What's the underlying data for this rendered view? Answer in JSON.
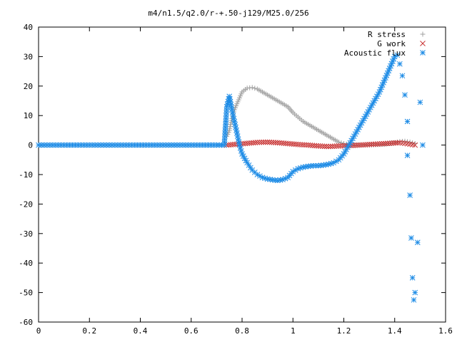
{
  "chart_data": {
    "type": "scatter",
    "title": "m4/n1.5/q2.0/r-+.50-j129/M25.0/256",
    "xlim": [
      0,
      1.6
    ],
    "ylim": [
      -60,
      40
    ],
    "x_ticks": [
      "0",
      "0.2",
      "0.4",
      "0.6",
      "0.8",
      "1",
      "1.2",
      "1.4",
      "1.6"
    ],
    "y_ticks": [
      "40",
      "30",
      "20",
      "10",
      "0",
      "-10",
      "-20",
      "-30",
      "-40",
      "-50",
      "-60"
    ],
    "grid": false,
    "legend_position": "top-right",
    "series": [
      {
        "name": "R stress",
        "marker": "plus",
        "color": "#a0a0a0",
        "points": [
          [
            0.74,
            3
          ],
          [
            0.75,
            5
          ],
          [
            0.76,
            9
          ],
          [
            0.77,
            12
          ],
          [
            0.78,
            14
          ],
          [
            0.79,
            16
          ],
          [
            0.8,
            18
          ],
          [
            0.82,
            19.3
          ],
          [
            0.84,
            19.5
          ],
          [
            0.86,
            19
          ],
          [
            0.88,
            18
          ],
          [
            0.9,
            17
          ],
          [
            0.92,
            16
          ],
          [
            0.94,
            15
          ],
          [
            0.96,
            14
          ],
          [
            0.98,
            13
          ],
          [
            1.0,
            11
          ],
          [
            1.02,
            9.5
          ],
          [
            1.04,
            8
          ],
          [
            1.06,
            7
          ],
          [
            1.08,
            6
          ],
          [
            1.1,
            5
          ],
          [
            1.12,
            4
          ],
          [
            1.14,
            3
          ],
          [
            1.16,
            2
          ],
          [
            1.18,
            1
          ],
          [
            1.2,
            0.5
          ],
          [
            1.22,
            0.2
          ],
          [
            1.24,
            0
          ],
          [
            1.3,
            0
          ],
          [
            1.36,
            0.3
          ],
          [
            1.4,
            0.8
          ],
          [
            1.42,
            1.2
          ],
          [
            1.44,
            1.3
          ],
          [
            1.46,
            1
          ],
          [
            1.48,
            0.5
          ]
        ]
      },
      {
        "name": "G work",
        "marker": "cross",
        "color": "#c83232",
        "points": [
          [
            0.74,
            0
          ],
          [
            0.78,
            0.3
          ],
          [
            0.82,
            0.6
          ],
          [
            0.86,
            0.9
          ],
          [
            0.9,
            1.0
          ],
          [
            0.94,
            0.8
          ],
          [
            0.98,
            0.5
          ],
          [
            1.02,
            0.2
          ],
          [
            1.06,
            0
          ],
          [
            1.1,
            -0.3
          ],
          [
            1.14,
            -0.5
          ],
          [
            1.18,
            -0.3
          ],
          [
            1.22,
            -0.2
          ],
          [
            1.26,
            0
          ],
          [
            1.3,
            0.2
          ],
          [
            1.34,
            0.4
          ],
          [
            1.38,
            0.6
          ],
          [
            1.42,
            0.8
          ],
          [
            1.44,
            0.6
          ],
          [
            1.46,
            0.3
          ],
          [
            1.48,
            0
          ]
        ]
      },
      {
        "name": "Acoustic flux",
        "marker": "star",
        "color": "#1e8ce6",
        "points": [
          [
            0,
            0
          ],
          [
            0.1,
            0
          ],
          [
            0.2,
            0
          ],
          [
            0.3,
            0
          ],
          [
            0.4,
            0
          ],
          [
            0.5,
            0
          ],
          [
            0.6,
            0
          ],
          [
            0.7,
            0
          ],
          [
            0.73,
            0
          ],
          [
            0.74,
            13
          ],
          [
            0.75,
            16.5
          ],
          [
            0.76,
            12
          ],
          [
            0.77,
            8
          ],
          [
            0.78,
            4
          ],
          [
            0.79,
            0
          ],
          [
            0.8,
            -3
          ],
          [
            0.82,
            -6
          ],
          [
            0.84,
            -8.5
          ],
          [
            0.86,
            -10
          ],
          [
            0.88,
            -11
          ],
          [
            0.9,
            -11.5
          ],
          [
            0.92,
            -11.8
          ],
          [
            0.94,
            -12
          ],
          [
            0.96,
            -11.7
          ],
          [
            0.98,
            -11
          ],
          [
            1.0,
            -9
          ],
          [
            1.02,
            -8
          ],
          [
            1.04,
            -7.5
          ],
          [
            1.06,
            -7.2
          ],
          [
            1.08,
            -7
          ],
          [
            1.1,
            -7
          ],
          [
            1.12,
            -6.8
          ],
          [
            1.14,
            -6.5
          ],
          [
            1.16,
            -6
          ],
          [
            1.18,
            -5
          ],
          [
            1.2,
            -3
          ],
          [
            1.22,
            0
          ],
          [
            1.24,
            3
          ],
          [
            1.26,
            6
          ],
          [
            1.28,
            9
          ],
          [
            1.3,
            12
          ],
          [
            1.32,
            15
          ],
          [
            1.34,
            18
          ],
          [
            1.36,
            22
          ],
          [
            1.38,
            26
          ],
          [
            1.4,
            30
          ],
          [
            1.41,
            30.5
          ],
          [
            1.42,
            27.5
          ],
          [
            1.43,
            23.5
          ],
          [
            1.44,
            17
          ],
          [
            1.45,
            8
          ],
          [
            1.45,
            -3.5
          ],
          [
            1.46,
            -17
          ],
          [
            1.465,
            -31.5
          ],
          [
            1.47,
            -45
          ],
          [
            1.475,
            -52.5
          ],
          [
            1.48,
            -50
          ],
          [
            1.49,
            -33
          ],
          [
            1.5,
            14.5
          ],
          [
            1.51,
            0
          ]
        ]
      }
    ]
  }
}
